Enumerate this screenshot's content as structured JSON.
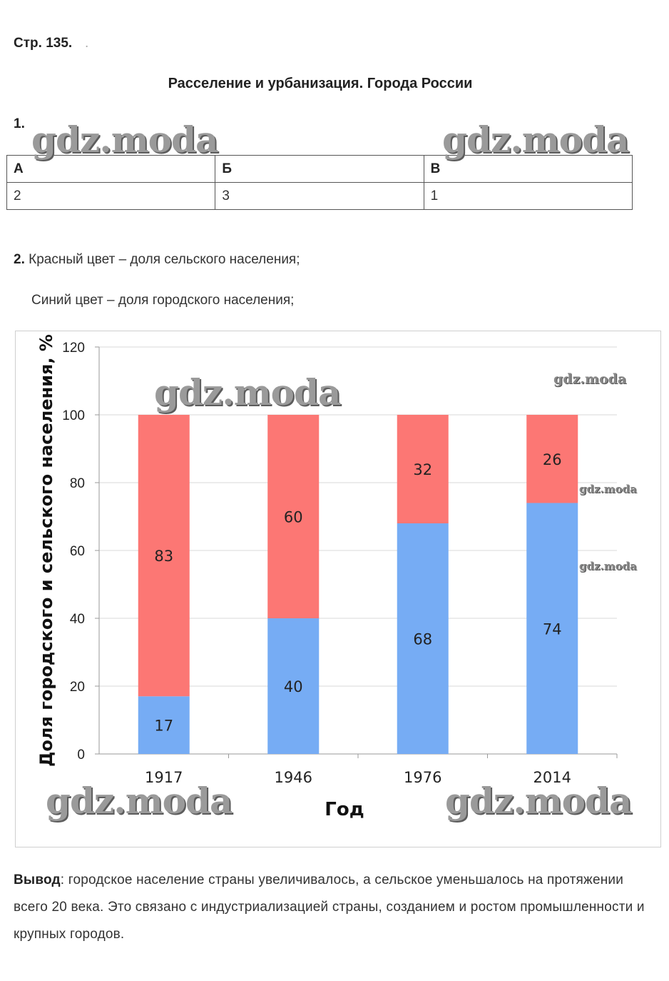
{
  "page": {
    "label": "Стр. 135.",
    "dot": "."
  },
  "heading": "Расселение и урбанизация. Города России",
  "task1": {
    "number": "1.",
    "headers": [
      "А",
      "Б",
      "В"
    ],
    "values": [
      "2",
      "3",
      "1"
    ]
  },
  "task2": {
    "number": "2.",
    "line1": "Красный цвет – доля сельского населения;",
    "line2": "Синий цвет – доля городского населения;"
  },
  "watermark": "gdz.moda",
  "chart_data": {
    "type": "bar",
    "stacked": true,
    "categories": [
      "1917",
      "1946",
      "1976",
      "2014"
    ],
    "series": [
      {
        "key": "urban",
        "values": [
          17,
          40,
          68,
          74
        ],
        "color": "#76acf4"
      },
      {
        "key": "rural",
        "values": [
          83,
          60,
          32,
          26
        ],
        "color": "#fc7774"
      }
    ],
    "xlabel": "Год",
    "ylabel": "Доля городского и сельского населения, %",
    "ylim": [
      0,
      120
    ],
    "yticks": [
      "0",
      "20",
      "40",
      "60",
      "80",
      "100",
      "120"
    ],
    "grid": true,
    "legend": "none"
  },
  "conclusion": {
    "label": "Вывод",
    "text": ": городское население страны увеличивалось, а сельское уменьшалось на протяжении всего 20 века. Это связано с индустриализацией страны, созданием и ростом промышленности и крупных городов."
  }
}
